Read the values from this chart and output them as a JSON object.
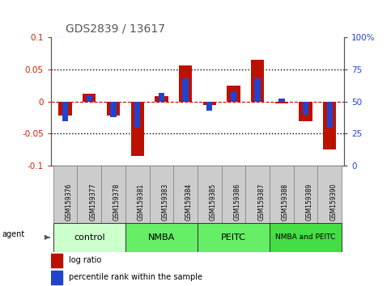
{
  "title": "GDS2839 / 13617",
  "samples": [
    "GSM159376",
    "GSM159377",
    "GSM159378",
    "GSM159381",
    "GSM159383",
    "GSM159384",
    "GSM159385",
    "GSM159386",
    "GSM159387",
    "GSM159388",
    "GSM159389",
    "GSM159390"
  ],
  "log_ratio": [
    -0.022,
    0.012,
    -0.022,
    -0.085,
    0.008,
    0.056,
    -0.005,
    0.025,
    0.065,
    -0.003,
    -0.03,
    -0.075
  ],
  "percentile_rank": [
    35,
    55,
    38,
    30,
    57,
    68,
    43,
    58,
    68,
    52,
    40,
    30
  ],
  "groups": [
    {
      "label": "control",
      "start": 0,
      "end": 3,
      "color": "#ccffcc"
    },
    {
      "label": "NMBA",
      "start": 3,
      "end": 6,
      "color": "#66ee66"
    },
    {
      "label": "PEITC",
      "start": 6,
      "end": 9,
      "color": "#66ee66"
    },
    {
      "label": "NMBA and PEITC",
      "start": 9,
      "end": 12,
      "color": "#44dd44"
    }
  ],
  "ylim": [
    -0.1,
    0.1
  ],
  "yticks_left": [
    -0.1,
    -0.05,
    0.0,
    0.05,
    0.1
  ],
  "yticks_right": [
    0,
    25,
    50,
    75,
    100
  ],
  "bar_color_red": "#bb1100",
  "bar_color_blue": "#2244cc",
  "dotted_line_color": "#000000",
  "zero_line_color": "#cc0000",
  "bar_width": 0.55,
  "blue_bar_width": 0.25,
  "agent_label": "agent",
  "legend_red": "log ratio",
  "legend_blue": "percentile rank within the sample",
  "title_color": "#555555",
  "left_axis_color": "#cc2200",
  "right_axis_color": "#2244cc",
  "sample_box_color": "#cccccc",
  "group_colors": [
    "#ccffcc",
    "#66ee66",
    "#66ee66",
    "#44dd44"
  ]
}
